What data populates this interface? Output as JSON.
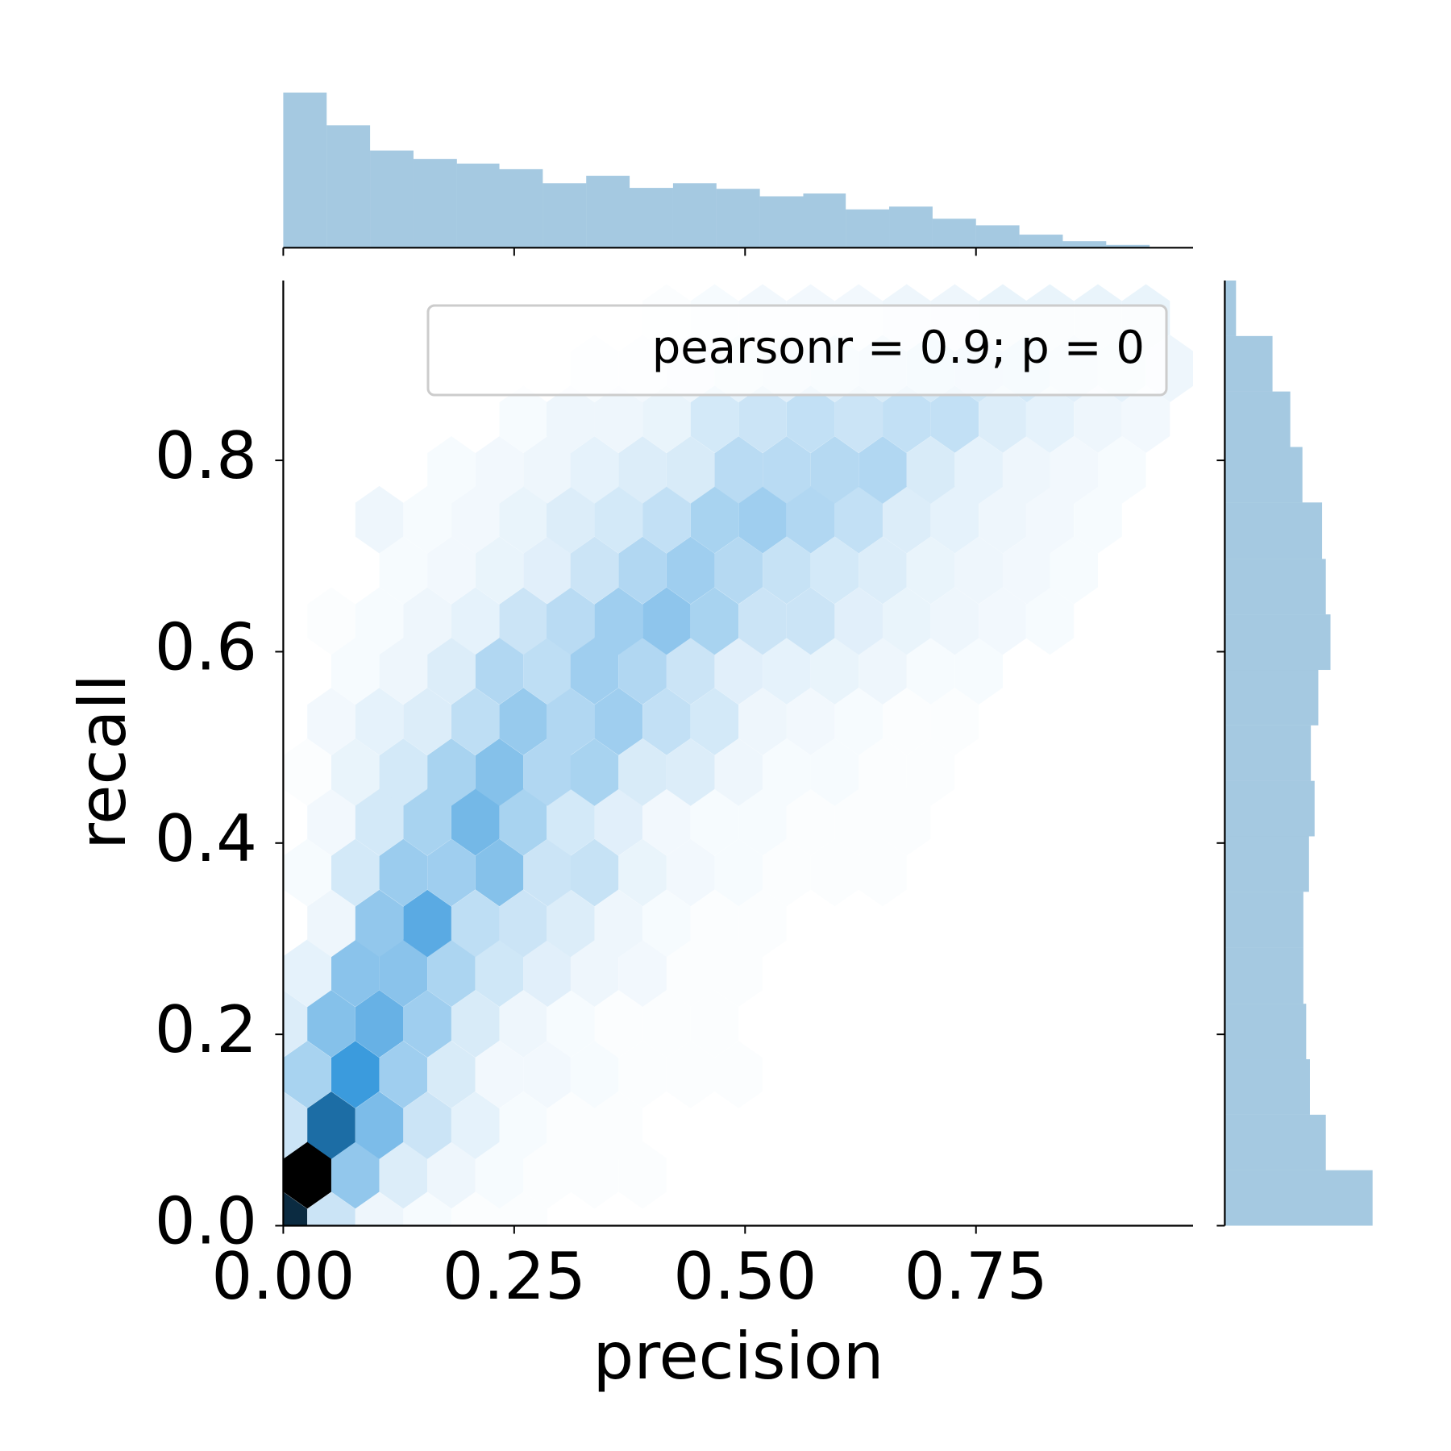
{
  "chart_data": [
    {
      "type": "hexbin",
      "x_label": "precision",
      "y_label": "recall",
      "annotation": "pearsonr = 0.9; p = 0",
      "color": "#1f77b4",
      "xlim": [
        0,
        0.985
      ],
      "ylim": [
        0,
        0.988
      ],
      "xticks": [
        {
          "value": 0,
          "label": "0.00"
        },
        {
          "value": 0.25,
          "label": "0.25"
        },
        {
          "value": 0.5,
          "label": "0.50"
        },
        {
          "value": 0.75,
          "label": "0.75"
        }
      ],
      "yticks": [
        {
          "value": 0,
          "label": "0.0"
        },
        0.2,
        0.4,
        0.6,
        0.8
      ],
      "rows": [
        {
          "y": 0,
          "x": [
            0,
            0.052,
            0.104,
            0.156,
            0.208,
            0.26
          ],
          "values": [
            85,
            12,
            4,
            2,
            1,
            1
          ]
        },
        {
          "y": 0.053,
          "x": [
            0.026,
            0.078,
            0.13,
            0.182,
            0.234,
            0.286,
            0.337,
            0.389
          ],
          "values": [
            100,
            25,
            8,
            4,
            2,
            1,
            1,
            1
          ]
        },
        {
          "y": 0.105,
          "x": [
            0,
            0.052,
            0.104,
            0.156,
            0.208,
            0.26,
            0.311,
            0.363
          ],
          "values": [
            12,
            62,
            30,
            12,
            6,
            2,
            1,
            1
          ]
        },
        {
          "y": 0.158,
          "x": [
            0.026,
            0.078,
            0.13,
            0.182,
            0.234,
            0.286,
            0.337,
            0.389,
            0.441,
            0.493
          ],
          "values": [
            20,
            45,
            22,
            9,
            3,
            3,
            2,
            1,
            1,
            1
          ]
        },
        {
          "y": 0.211,
          "x": [
            0,
            0.052,
            0.104,
            0.156,
            0.208,
            0.26,
            0.311,
            0.363,
            0.415,
            0.467
          ],
          "values": [
            8,
            28,
            35,
            22,
            9,
            4,
            2,
            1,
            1,
            1
          ]
        },
        {
          "y": 0.264,
          "x": [
            0.026,
            0.078,
            0.13,
            0.182,
            0.234,
            0.286,
            0.337,
            0.389,
            0.441,
            0.493
          ],
          "values": [
            6,
            27,
            27,
            19,
            11,
            7,
            4,
            3,
            1,
            1
          ]
        },
        {
          "y": 0.316,
          "x": [
            0.052,
            0.104,
            0.156,
            0.208,
            0.26,
            0.311,
            0.363,
            0.415,
            0.467,
            0.519
          ],
          "values": [
            4,
            25,
            38,
            15,
            12,
            8,
            4,
            2,
            1,
            1
          ]
        },
        {
          "y": 0.369,
          "x": [
            0.026,
            0.078,
            0.13,
            0.182,
            0.234,
            0.286,
            0.337,
            0.389,
            0.441,
            0.493,
            0.545,
            0.597,
            0.649
          ],
          "values": [
            2,
            10,
            23,
            22,
            28,
            12,
            13,
            5,
            3,
            2,
            1,
            1,
            1
          ]
        },
        {
          "y": 0.422,
          "x": [
            0.052,
            0.104,
            0.156,
            0.208,
            0.26,
            0.311,
            0.363,
            0.415,
            0.467,
            0.519,
            0.571,
            0.623,
            0.675
          ],
          "values": [
            3,
            10,
            20,
            32,
            20,
            10,
            7,
            3,
            2,
            2,
            1,
            1,
            1
          ]
        },
        {
          "y": 0.474,
          "x": [
            0.026,
            0.078,
            0.13,
            0.182,
            0.234,
            0.286,
            0.337,
            0.389,
            0.441,
            0.493,
            0.545,
            0.597,
            0.649,
            0.701
          ],
          "values": [
            1,
            5,
            10,
            20,
            28,
            18,
            20,
            9,
            8,
            4,
            2,
            2,
            1,
            1
          ]
        },
        {
          "y": 0.527,
          "x": [
            0.052,
            0.104,
            0.156,
            0.208,
            0.26,
            0.311,
            0.363,
            0.415,
            0.467,
            0.519,
            0.571,
            0.623,
            0.675,
            0.727
          ],
          "values": [
            3,
            6,
            8,
            15,
            24,
            18,
            22,
            14,
            10,
            4,
            3,
            2,
            1,
            1
          ]
        },
        {
          "y": 0.58,
          "x": [
            0.078,
            0.13,
            0.182,
            0.234,
            0.286,
            0.337,
            0.389,
            0.441,
            0.493,
            0.545,
            0.597,
            0.649,
            0.701,
            0.753
          ],
          "values": [
            2,
            4,
            8,
            18,
            15,
            22,
            18,
            12,
            7,
            6,
            5,
            4,
            2,
            2
          ]
        },
        {
          "y": 0.632,
          "x": [
            0.052,
            0.104,
            0.156,
            0.208,
            0.26,
            0.311,
            0.363,
            0.415,
            0.467,
            0.519,
            0.571,
            0.623,
            0.675,
            0.727,
            0.779,
            0.83
          ],
          "values": [
            1,
            2,
            4,
            6,
            12,
            16,
            22,
            26,
            20,
            12,
            12,
            7,
            5,
            4,
            3,
            2
          ]
        },
        {
          "y": 0.685,
          "x": [
            0.13,
            0.182,
            0.234,
            0.286,
            0.337,
            0.389,
            0.441,
            0.493,
            0.545,
            0.597,
            0.649,
            0.701,
            0.753,
            0.805,
            0.856
          ],
          "values": [
            2,
            3,
            5,
            7,
            12,
            18,
            22,
            17,
            13,
            10,
            8,
            5,
            4,
            3,
            2
          ]
        },
        {
          "y": 0.738,
          "x": [
            0.104,
            0.156,
            0.208,
            0.26,
            0.311,
            0.363,
            0.415,
            0.467,
            0.519,
            0.571,
            0.623,
            0.675,
            0.727,
            0.779,
            0.83,
            0.882
          ],
          "values": [
            4,
            2,
            3,
            5,
            8,
            10,
            14,
            20,
            22,
            18,
            14,
            8,
            6,
            4,
            3,
            2
          ]
        },
        {
          "y": 0.79,
          "x": [
            0.182,
            0.234,
            0.286,
            0.337,
            0.389,
            0.441,
            0.493,
            0.545,
            0.597,
            0.649,
            0.701,
            0.753,
            0.805,
            0.856,
            0.908
          ],
          "values": [
            2,
            3,
            4,
            6,
            8,
            9,
            16,
            16,
            17,
            18,
            9,
            6,
            4,
            3,
            2
          ]
        },
        {
          "y": 0.843,
          "x": [
            0.26,
            0.311,
            0.363,
            0.415,
            0.467,
            0.519,
            0.571,
            0.623,
            0.675,
            0.727,
            0.779,
            0.83,
            0.882,
            0.934
          ],
          "values": [
            2,
            4,
            4,
            5,
            10,
            12,
            14,
            12,
            14,
            14,
            8,
            6,
            4,
            3
          ]
        },
        {
          "y": 0.896,
          "x": [
            0.337,
            0.389,
            0.441,
            0.493,
            0.545,
            0.597,
            0.649,
            0.701,
            0.753,
            0.805,
            0.856,
            0.908,
            0.96
          ],
          "values": [
            2,
            3,
            4,
            6,
            7,
            8,
            9,
            10,
            11,
            10,
            7,
            6,
            4
          ]
        },
        {
          "y": 0.949,
          "x": [
            0.415,
            0.467,
            0.519,
            0.571,
            0.623,
            0.675,
            0.727,
            0.779,
            0.83,
            0.882,
            0.934
          ],
          "values": [
            1,
            2,
            3,
            3,
            3,
            4,
            4,
            5,
            5,
            5,
            5
          ]
        }
      ]
    },
    {
      "type": "histogram",
      "orientation": "vertical",
      "color": "#1f77b4",
      "bins": [
        0,
        0.047,
        0.094,
        0.141,
        0.188,
        0.234,
        0.281,
        0.328,
        0.375,
        0.422,
        0.469,
        0.516,
        0.563,
        0.609,
        0.656,
        0.703,
        0.75,
        0.797,
        0.844,
        0.891,
        0.938
      ],
      "values": [
        166,
        131,
        104,
        95,
        90,
        84,
        69,
        77,
        64,
        69,
        63,
        55,
        58,
        41,
        44,
        31,
        24,
        14,
        7,
        3
      ],
      "ylim": [
        0,
        166
      ]
    },
    {
      "type": "histogram",
      "orientation": "horizontal",
      "color": "#1f77b4",
      "bins": [
        0,
        0.058,
        0.116,
        0.174,
        0.232,
        0.291,
        0.349,
        0.407,
        0.465,
        0.523,
        0.581,
        0.639,
        0.697,
        0.756,
        0.814,
        0.872,
        0.93,
        0.988
      ],
      "values": [
        158,
        108,
        91,
        87,
        84,
        84,
        90,
        96,
        92,
        100,
        113,
        108,
        104,
        83,
        70,
        51,
        12
      ],
      "xlim": [
        0,
        166
      ]
    }
  ]
}
